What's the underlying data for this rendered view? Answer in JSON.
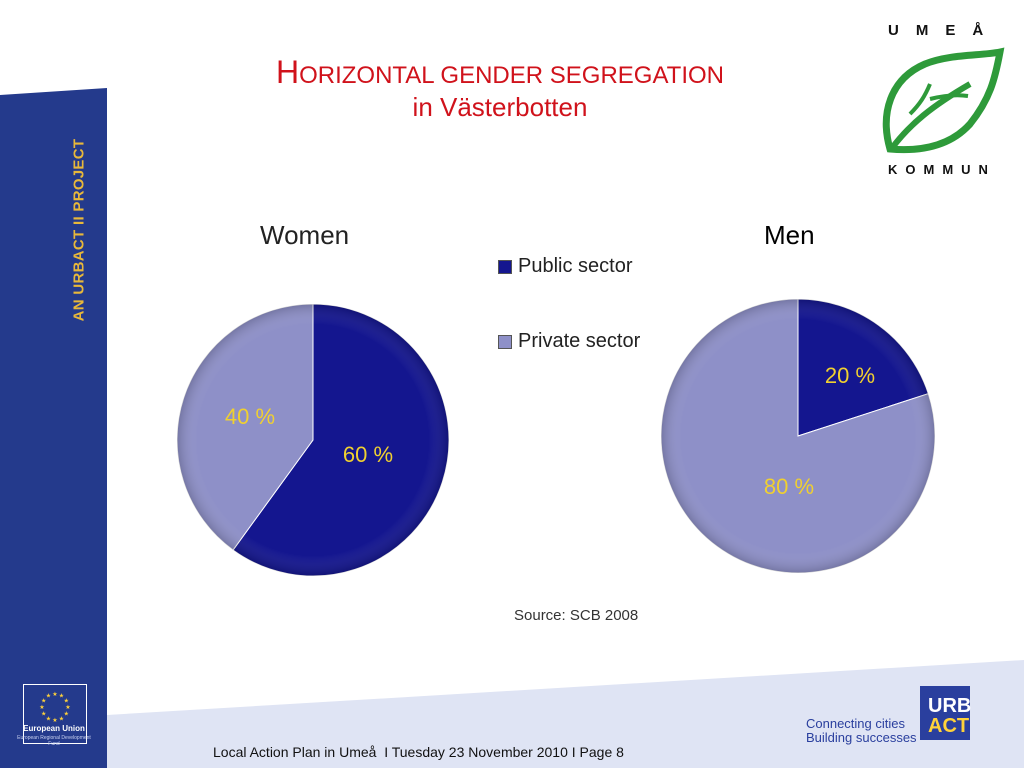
{
  "slide": {
    "title_initial": "H",
    "title_rest": "ORIZONTAL GENDER SEGREGATION",
    "subtitle": "in Västerbotten",
    "side_text": "AN URBACT II PROJECT",
    "source": "Source: SCB 2008",
    "footer": "Local Action Plan in Umeå  I Tuesday 23 November 2010 I Page 8",
    "logo_top": "UMEÅ",
    "logo_bottom": "KOMMUN",
    "eu_label": "European Union",
    "eu_sub": "European Regional Development Fund",
    "tagline_1": "Connecting cities",
    "tagline_2": "Building successes",
    "urbact_1": "URB",
    "urbact_2": "ACT"
  },
  "colors": {
    "public": "#14168f",
    "private": "#8e90c8",
    "label": "#f0d030",
    "sidebar": "#243a8c",
    "title": "#d0121b"
  },
  "chart_data": [
    {
      "type": "pie",
      "title": "Women",
      "labels": [
        "Public sector",
        "Private sector"
      ],
      "values": [
        60,
        40
      ],
      "data_labels": [
        "60 %",
        "40 %"
      ]
    },
    {
      "type": "pie",
      "title": "Men",
      "labels": [
        "Public sector",
        "Private sector"
      ],
      "values": [
        20,
        80
      ],
      "data_labels": [
        "20 %",
        "80 %"
      ]
    }
  ],
  "legend": [
    {
      "name": "Public sector",
      "color": "#14168f"
    },
    {
      "name": "Private sector",
      "color": "#8e90c8"
    }
  ]
}
